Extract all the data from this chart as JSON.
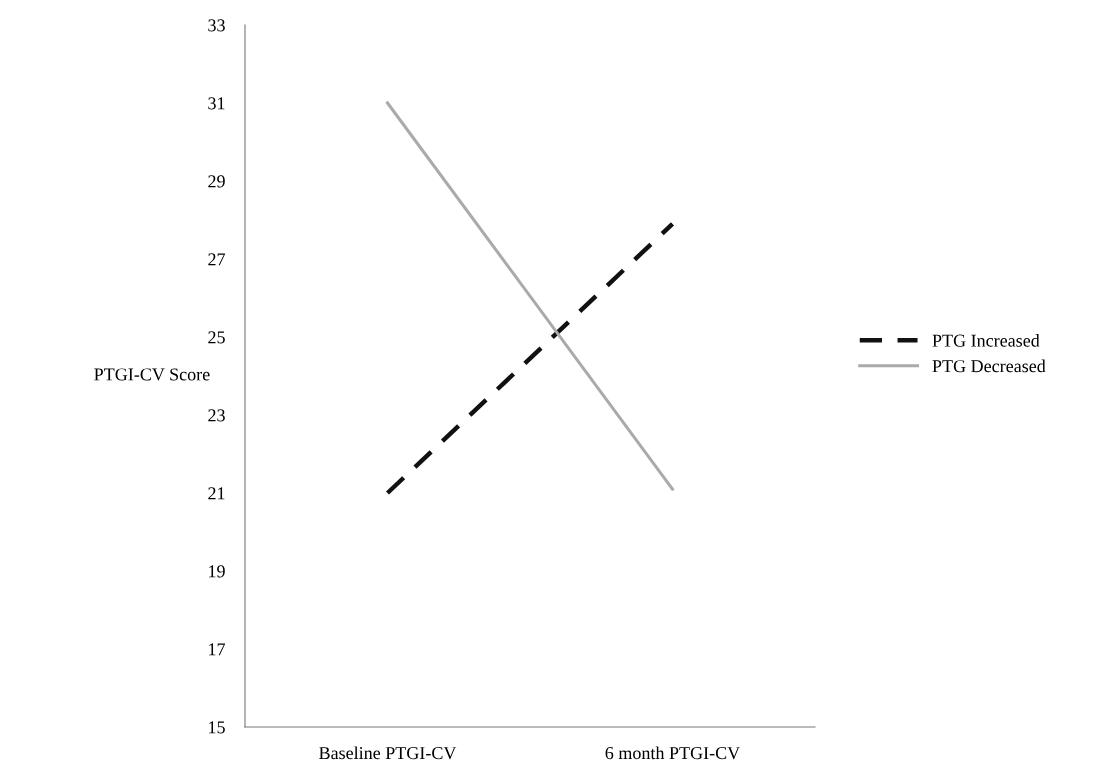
{
  "chart_data": {
    "type": "line",
    "ylabel": "PTGI-CV Score",
    "categories": [
      "Baseline PTGI-CV",
      "6 month PTGI-CV"
    ],
    "series": [
      {
        "name": "PTG Increased",
        "color": "#111111",
        "values": [
          21.0,
          27.9
        ],
        "line_style": "dashed"
      },
      {
        "name": "PTG Decreased",
        "color": "#aaaaaa",
        "values": [
          31.0,
          21.1
        ],
        "line_style": "solid"
      }
    ],
    "ylim": [
      15,
      33
    ],
    "yticks": [
      15,
      17,
      19,
      21,
      23,
      25,
      27,
      29,
      31,
      33
    ],
    "grid": false,
    "legend": "right",
    "marker": "none"
  }
}
